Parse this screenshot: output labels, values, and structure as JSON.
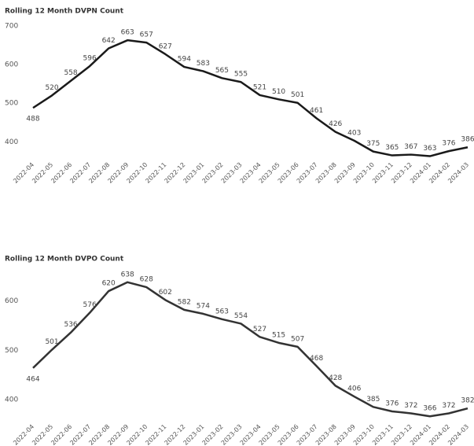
{
  "chart_data": [
    {
      "type": "line",
      "title": "Rolling 12 Month DVPN Count",
      "categories": [
        "2022-04",
        "2022-05",
        "2022-06",
        "2022-07",
        "2022-08",
        "2022-09",
        "2022-10",
        "2022-11",
        "2022-12",
        "2023-01",
        "2023-02",
        "2023-03",
        "2023-04",
        "2023-05",
        "2023-06",
        "2023-07",
        "2023-08",
        "2023-09",
        "2023-10",
        "2023-11",
        "2023-12",
        "2024-01",
        "2024-02",
        "2024-03"
      ],
      "values": [
        488,
        520,
        558,
        596,
        642,
        663,
        657,
        627,
        594,
        583,
        565,
        555,
        521,
        510,
        501,
        461,
        426,
        403,
        375,
        365,
        367,
        363,
        376,
        386
      ],
      "color": "#1a1a1a",
      "ylim": [
        360,
        700
      ],
      "yticks": [
        400,
        500,
        600,
        700
      ]
    },
    {
      "type": "line",
      "title": "Rolling 12 Month DVPO Count",
      "categories": [
        "2022-04",
        "2022-05",
        "2022-06",
        "2022-07",
        "2022-08",
        "2022-09",
        "2022-10",
        "2022-11",
        "2022-12",
        "2023-01",
        "2023-02",
        "2023-03",
        "2023-04",
        "2023-05",
        "2023-06",
        "2023-07",
        "2023-08",
        "2023-09",
        "2023-10",
        "2023-11",
        "2023-12",
        "2024-01",
        "2024-02",
        "2024-03"
      ],
      "values": [
        464,
        501,
        536,
        576,
        620,
        638,
        628,
        602,
        582,
        574,
        563,
        554,
        527,
        515,
        507,
        468,
        428,
        406,
        385,
        376,
        372,
        366,
        372,
        382
      ],
      "color": "#333333",
      "ylim": [
        360,
        660
      ],
      "yticks": [
        400,
        500,
        600
      ]
    }
  ]
}
